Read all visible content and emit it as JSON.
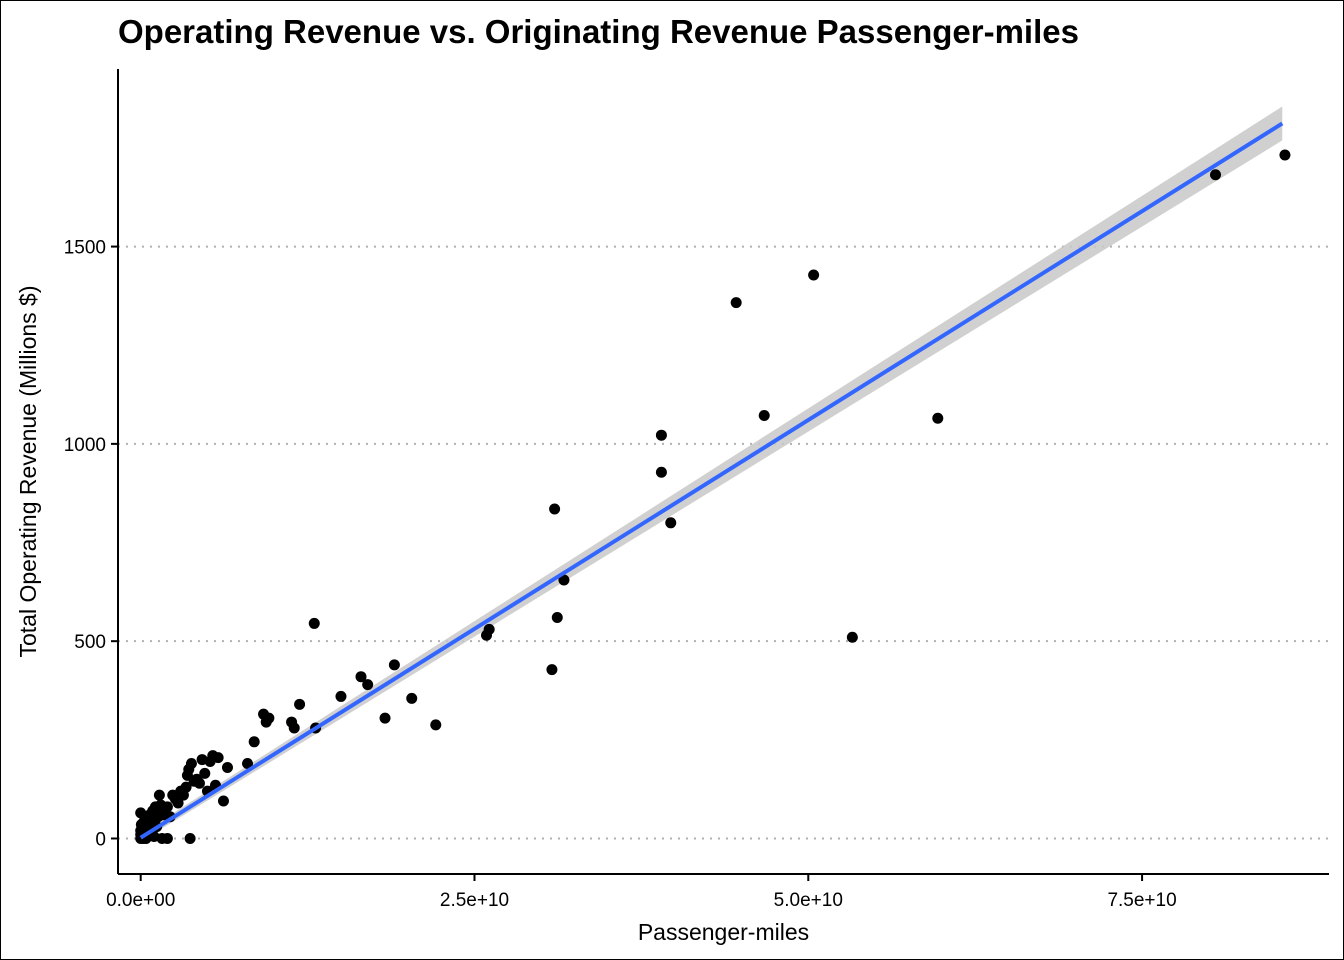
{
  "chart_data": {
    "type": "scatter",
    "title": "Operating Revenue vs. Originating Revenue Passenger-miles",
    "xlabel": "Passenger-miles",
    "ylabel": "Total Operating Revenue (Millions $)",
    "xlim": [
      -1700000000,
      89000000000
    ],
    "ylim": [
      -90,
      1950
    ],
    "x_ticks": [
      0,
      25000000000,
      50000000000,
      75000000000
    ],
    "x_tick_labels": [
      "0.0e+00",
      "2.5e+10",
      "5.0e+10",
      "7.5e+10"
    ],
    "y_ticks": [
      0,
      500,
      1000,
      1500
    ],
    "y_tick_labels": [
      "0",
      "500",
      "1000",
      "1500"
    ],
    "grid": "horizontal dotted major gridlines",
    "legend": "none",
    "colors": {
      "points": "#000000",
      "fit_line": "#3366ff",
      "confidence_band": "#c8c8c8",
      "grid": "#b0b0b0"
    },
    "fit_line": {
      "method": "linear regression with confidence band",
      "x": [
        0,
        85500000000
      ],
      "y": [
        2,
        1812
      ],
      "band_upper": [
        12,
        1855
      ],
      "band_lower": [
        -8,
        1769
      ]
    },
    "points": [
      [
        0,
        0
      ],
      [
        100000000,
        2
      ],
      [
        200000000,
        0
      ],
      [
        50000000,
        5
      ],
      [
        150000000,
        1
      ],
      [
        300000000,
        3
      ],
      [
        0,
        10
      ],
      [
        100000000,
        15
      ],
      [
        250000000,
        8
      ],
      [
        0,
        20
      ],
      [
        150000000,
        25
      ],
      [
        50000000,
        35
      ],
      [
        200000000,
        40
      ],
      [
        0,
        65
      ],
      [
        300000000,
        55
      ],
      [
        400000000,
        30
      ],
      [
        500000000,
        20
      ],
      [
        600000000,
        45
      ],
      [
        700000000,
        60
      ],
      [
        800000000,
        50
      ],
      [
        900000000,
        70
      ],
      [
        1000000000,
        40
      ],
      [
        1100000000,
        80
      ],
      [
        1200000000,
        30
      ],
      [
        1300000000,
        55
      ],
      [
        1400000000,
        65
      ],
      [
        1500000000,
        85
      ],
      [
        1600000000,
        70
      ],
      [
        1700000000,
        60
      ],
      [
        1800000000,
        75
      ],
      [
        2000000000,
        80
      ],
      [
        2200000000,
        55
      ],
      [
        2400000000,
        110
      ],
      [
        2600000000,
        100
      ],
      [
        2800000000,
        90
      ],
      [
        3000000000,
        120
      ],
      [
        3200000000,
        110
      ],
      [
        3400000000,
        130
      ],
      [
        3500000000,
        160
      ],
      [
        3600000000,
        175
      ],
      [
        3800000000,
        190
      ],
      [
        4000000000,
        145
      ],
      [
        4200000000,
        150
      ],
      [
        4400000000,
        140
      ],
      [
        4600000000,
        200
      ],
      [
        4800000000,
        165
      ],
      [
        5000000000,
        120
      ],
      [
        5200000000,
        195
      ],
      [
        5400000000,
        210
      ],
      [
        5600000000,
        135
      ],
      [
        5800000000,
        205
      ],
      [
        6200000000,
        95
      ],
      [
        6500000000,
        180
      ],
      [
        8000000000,
        190
      ],
      [
        8500000000,
        245
      ],
      [
        9200000000,
        315
      ],
      [
        9400000000,
        295
      ],
      [
        9600000000,
        305
      ],
      [
        11300000000,
        295
      ],
      [
        11500000000,
        280
      ],
      [
        11900000000,
        340
      ],
      [
        13100000000,
        280
      ],
      [
        13000000000,
        545
      ],
      [
        15000000000,
        360
      ],
      [
        16500000000,
        410
      ],
      [
        17000000000,
        390
      ],
      [
        18300000000,
        305
      ],
      [
        19000000000,
        440
      ],
      [
        20300000000,
        355
      ],
      [
        22100000000,
        288
      ],
      [
        1400000000,
        110
      ],
      [
        2000000000,
        0
      ],
      [
        1600000000,
        0
      ],
      [
        3700000000,
        0
      ],
      [
        1000000000,
        5
      ],
      [
        400000000,
        0
      ],
      [
        25900000000,
        515
      ],
      [
        26100000000,
        530
      ],
      [
        30800000000,
        428
      ],
      [
        31000000000,
        835
      ],
      [
        31200000000,
        560
      ],
      [
        31700000000,
        655
      ],
      [
        39000000000,
        1022
      ],
      [
        39000000000,
        928
      ],
      [
        39700000000,
        800
      ],
      [
        44600000000,
        1358
      ],
      [
        46700000000,
        1072
      ],
      [
        50400000000,
        1428
      ],
      [
        53300000000,
        510
      ],
      [
        59700000000,
        1065
      ],
      [
        80500000000,
        1682
      ],
      [
        85700000000,
        1732
      ]
    ]
  }
}
